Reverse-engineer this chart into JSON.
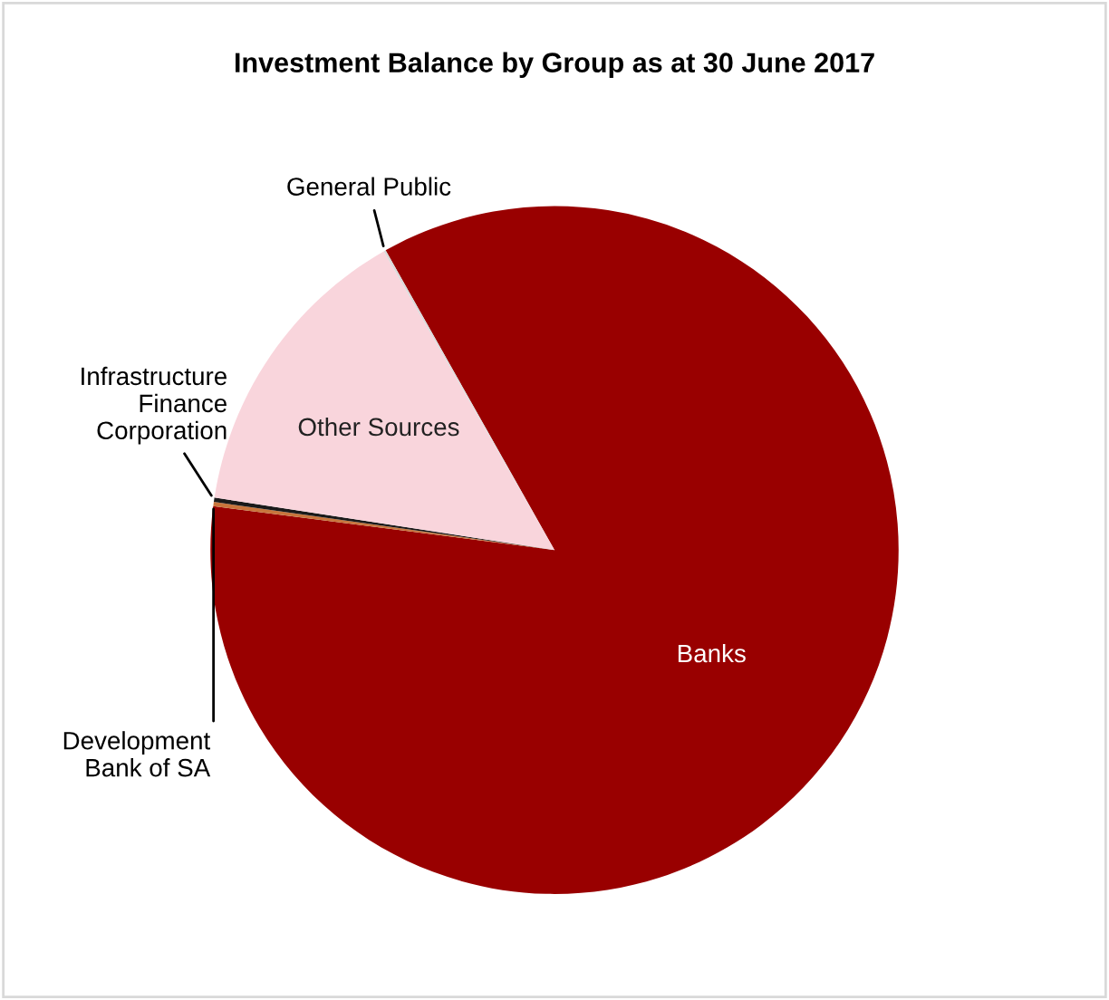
{
  "chart_data": {
    "type": "pie",
    "title": "Investment Balance by Group as at 30 June 2017",
    "categories": [
      "Banks",
      "Development Bank of SA",
      "Infrastructure Finance Corporation",
      "Other Sources",
      "General Public"
    ],
    "values": [
      85.2,
      0.2,
      0.2,
      14.3,
      0.1
    ],
    "colors": [
      "#990000",
      "#c8753c",
      "#1a1a1a",
      "#f9d5dc",
      "#d9d9d9"
    ],
    "legend": false
  }
}
